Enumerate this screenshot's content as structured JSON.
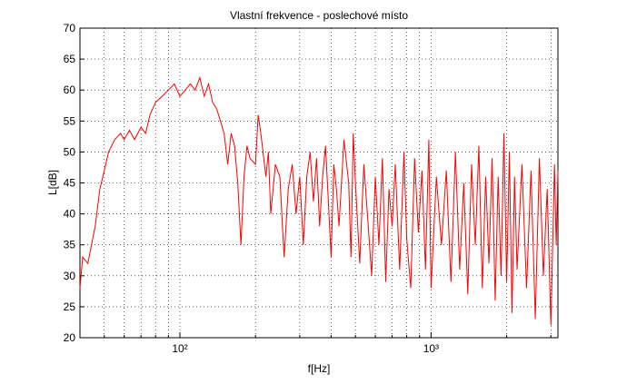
{
  "chart_data": {
    "type": "line",
    "title": "Vlastní frekvence - poslechové místo",
    "xlabel": "f[Hz]",
    "ylabel": "L[dB]",
    "xscale": "log",
    "grid": true,
    "xlim": [
      40,
      3200
    ],
    "ylim": [
      20,
      70
    ],
    "xticks": [
      {
        "value": 100,
        "label": "10²"
      },
      {
        "value": 1000,
        "label": "10³"
      }
    ],
    "xminorticks": [
      50,
      60,
      70,
      80,
      90,
      200,
      300,
      400,
      500,
      600,
      700,
      800,
      900,
      2000,
      3000
    ],
    "yticks": [
      20,
      25,
      30,
      35,
      40,
      45,
      50,
      55,
      60,
      65,
      70
    ],
    "x": [
      40,
      41,
      43,
      46,
      48,
      50,
      52,
      55,
      58,
      60,
      63,
      66,
      70,
      73,
      76,
      80,
      85,
      90,
      95,
      100,
      105,
      110,
      115,
      120,
      125,
      130,
      135,
      140,
      145,
      150,
      155,
      160,
      165,
      170,
      175,
      180,
      185,
      190,
      200,
      205,
      210,
      220,
      225,
      230,
      240,
      250,
      260,
      270,
      280,
      290,
      300,
      310,
      320,
      330,
      340,
      350,
      360,
      370,
      380,
      390,
      400,
      410,
      420,
      430,
      450,
      470,
      480,
      490,
      500,
      520,
      540,
      560,
      580,
      600,
      620,
      640,
      660,
      680,
      700,
      720,
      750,
      780,
      800,
      830,
      860,
      890,
      920,
      950,
      980,
      1000,
      1050,
      1100,
      1150,
      1200,
      1250,
      1300,
      1350,
      1400,
      1450,
      1500,
      1550,
      1600,
      1650,
      1700,
      1750,
      1800,
      1850,
      1900,
      1950,
      2000,
      2050,
      2100,
      2150,
      2200,
      2300,
      2400,
      2500,
      2600,
      2700,
      2800,
      2900,
      3000,
      3100,
      3150,
      3200
    ],
    "series": [
      {
        "name": "L",
        "color": "#ff0000",
        "values": [
          28,
          33,
          32,
          38,
          44,
          47,
          50,
          52,
          53,
          52,
          53.5,
          52,
          54,
          53,
          56,
          58,
          59,
          60,
          61,
          59,
          60,
          61,
          60,
          62,
          59,
          61,
          58,
          57,
          55,
          53,
          48,
          53,
          51,
          45,
          35,
          46,
          51,
          49,
          48,
          56,
          53,
          46,
          50,
          40,
          48,
          46,
          33,
          44,
          48,
          40,
          46,
          35,
          46,
          50,
          42,
          49,
          38,
          46,
          51,
          42,
          33,
          48,
          44,
          38,
          52,
          45,
          33,
          53,
          45,
          32,
          48,
          39,
          30,
          46,
          35,
          49,
          29,
          44,
          38,
          48,
          31,
          50,
          36,
          28,
          49,
          37,
          47,
          31,
          52,
          28,
          46,
          35,
          47,
          29,
          50,
          31,
          45,
          27,
          48,
          35,
          51,
          28,
          46,
          32,
          49,
          26,
          46,
          30,
          53,
          29,
          50,
          24,
          46,
          31,
          48,
          28,
          47,
          23,
          49,
          30,
          44,
          22,
          48,
          35,
          47
        ]
      }
    ]
  }
}
